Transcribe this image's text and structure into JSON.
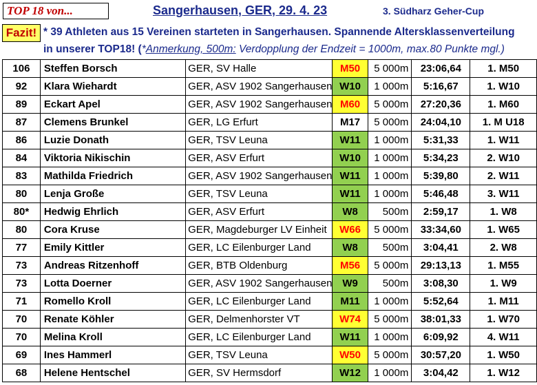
{
  "header": {
    "top18": "TOP 18 von...",
    "title": "Sangerhausen, GER,  29. 4. 23",
    "cup": "3. Südharz Geher-Cup"
  },
  "fazit": {
    "label": "Fazit!",
    "line1": "* 39 Athleten aus 15 Vereinen starteten in Sangerhausen. Spannende Altersklassenverteilung",
    "line2_bold": "in unserer TOP18! (",
    "line2_star": "*",
    "line2_underline": "Anmerkung, 500m:",
    "line2_rest": " Verdopplung der Endzeit = 1000m, max.80 Punkte mgl.)"
  },
  "colors": {
    "title_blue": "#1b2a8c",
    "red": "#c00000",
    "yellow": "#ffff33",
    "green": "#92d050"
  },
  "rows": [
    {
      "pts": "106",
      "name": "Steffen Borsch",
      "club": "GER, SV Halle",
      "cls": "M50",
      "cls_style": "red",
      "dist": "5 000m",
      "time": "23:06,64",
      "place": "1. M50"
    },
    {
      "pts": "92",
      "name": "Klara Wiehardt",
      "club": "GER, ASV 1902 Sangerhausen",
      "cls": "W10",
      "cls_style": "green",
      "dist": "1 000m",
      "time": "5:16,67",
      "place": "1. W10"
    },
    {
      "pts": "89",
      "name": "Eckart Apel",
      "club": "GER, ASV 1902 Sangerhausen",
      "cls": "M60",
      "cls_style": "red",
      "dist": "5 000m",
      "time": "27:20,36",
      "place": "1. M60"
    },
    {
      "pts": "87",
      "name": "Clemens Brunkel",
      "club": "GER, LG Erfurt",
      "cls": "M17",
      "cls_style": "white",
      "dist": "5 000m",
      "time": "24:04,10",
      "place": "1. M U18"
    },
    {
      "pts": "86",
      "name": "Luzie Donath",
      "club": "GER, TSV Leuna",
      "cls": "W11",
      "cls_style": "green",
      "dist": "1 000m",
      "time": "5:31,33",
      "place": "1. W11"
    },
    {
      "pts": "84",
      "name": "Viktoria Nikischin",
      "club": "GER, ASV Erfurt",
      "cls": "W10",
      "cls_style": "green",
      "dist": "1 000m",
      "time": "5:34,23",
      "place": "2. W10"
    },
    {
      "pts": "83",
      "name": "Mathilda Friedrich",
      "club": "GER, ASV 1902 Sangerhausen",
      "cls": "W11",
      "cls_style": "green",
      "dist": "1 000m",
      "time": "5:39,80",
      "place": "2. W11"
    },
    {
      "pts": "80",
      "name": "Lenja Große",
      "club": "GER, TSV Leuna",
      "cls": "W11",
      "cls_style": "green",
      "dist": "1 000m",
      "time": "5:46,48",
      "place": "3. W11"
    },
    {
      "pts": "80*",
      "name": "Hedwig Ehrlich",
      "club": "GER, ASV Erfurt",
      "cls": "W8",
      "cls_style": "green",
      "dist": "500m",
      "time": "2:59,17",
      "place": "1. W8"
    },
    {
      "pts": "80",
      "name": "Cora Kruse",
      "club": "GER, Magdeburger LV Einheit",
      "cls": "W66",
      "cls_style": "red",
      "dist": "5 000m",
      "time": "33:34,60",
      "place": "1. W65"
    },
    {
      "pts": "77",
      "name": "Emily Kittler",
      "club": "GER, LC Eilenburger Land",
      "cls": "W8",
      "cls_style": "green",
      "dist": "500m",
      "time": "3:04,41",
      "place": "2. W8"
    },
    {
      "pts": "73",
      "name": "Andreas Ritzenhoff",
      "club": "GER, BTB Oldenburg",
      "cls": "M56",
      "cls_style": "red",
      "dist": "5 000m",
      "time": "29:13,13",
      "place": "1. M55"
    },
    {
      "pts": "73",
      "name": "Lotta Doerner",
      "club": "GER, ASV 1902 Sangerhausen",
      "cls": "W9",
      "cls_style": "green",
      "dist": "500m",
      "time": "3:08,30",
      "place": "1. W9"
    },
    {
      "pts": "71",
      "name": "Romello Kroll",
      "club": "GER, LC Eilenburger Land",
      "cls": "M11",
      "cls_style": "green",
      "dist": "1 000m",
      "time": "5:52,64",
      "place": "1. M11"
    },
    {
      "pts": "70",
      "name": "Renate Köhler",
      "club": "GER, Delmenhorster VT",
      "cls": "W74",
      "cls_style": "red",
      "dist": "5 000m",
      "time": "38:01,33",
      "place": "1. W70"
    },
    {
      "pts": "70",
      "name": "Melina Kroll",
      "club": "GER, LC Eilenburger Land",
      "cls": "W11",
      "cls_style": "green",
      "dist": "1 000m",
      "time": "6:09,92",
      "place": "4. W11"
    },
    {
      "pts": "69",
      "name": "Ines Hammerl",
      "club": "GER, TSV Leuna",
      "cls": "W50",
      "cls_style": "red",
      "dist": "5 000m",
      "time": "30:57,20",
      "place": "1. W50"
    },
    {
      "pts": "68",
      "name": "Helene Hentschel",
      "club": "GER, SV Hermsdorf",
      "cls": "W12",
      "cls_style": "green",
      "dist": "1 000m",
      "time": "3:04,42",
      "place": "1. W12"
    }
  ]
}
